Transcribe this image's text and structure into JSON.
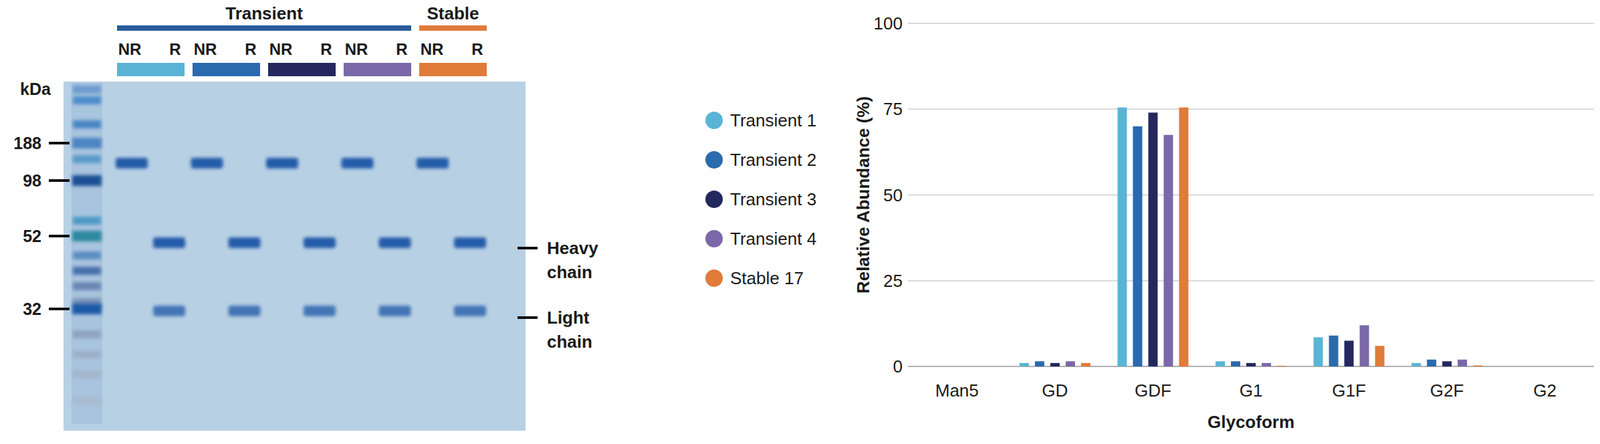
{
  "gel": {
    "ylabel": "kDa",
    "markers": [
      188,
      98,
      52,
      32
    ],
    "groups": [
      {
        "label": "Transient",
        "color": "#2a5b9b",
        "samples": [
          {
            "color": "#5ab4d6",
            "lanes": [
              "NR",
              "R"
            ]
          },
          {
            "color": "#2a6aad",
            "lanes": [
              "NR",
              "R"
            ]
          },
          {
            "color": "#24285e",
            "lanes": [
              "NR",
              "R"
            ]
          },
          {
            "color": "#7b68a8",
            "lanes": [
              "NR",
              "R"
            ]
          }
        ]
      },
      {
        "label": "Stable",
        "color": "#e07b3a",
        "samples": [
          {
            "color": "#e07b3a",
            "lanes": [
              "NR",
              "R"
            ]
          }
        ]
      }
    ],
    "bands": [
      {
        "label": "Heavy chain"
      },
      {
        "label": "Light chain"
      }
    ]
  },
  "chart_data": {
    "type": "bar",
    "xlabel": "Glycoform",
    "ylabel": "Relative Abundance (%)",
    "categories": [
      "Man5",
      "GD",
      "GDF",
      "G1",
      "G1F",
      "G2F",
      "G2"
    ],
    "series": [
      {
        "name": "Transient 1",
        "color": "#5ab4d6",
        "values": [
          0,
          1,
          75.5,
          1.5,
          8.5,
          1,
          0
        ]
      },
      {
        "name": "Transient 2",
        "color": "#2a6aad",
        "values": [
          0,
          1.5,
          70,
          1.5,
          9,
          2,
          0
        ]
      },
      {
        "name": "Transient 3",
        "color": "#24285e",
        "values": [
          0,
          1,
          74,
          1,
          7.5,
          1.5,
          0
        ]
      },
      {
        "name": "Transient 4",
        "color": "#7b68a8",
        "values": [
          0,
          1.5,
          67.5,
          1,
          12,
          2,
          0
        ]
      },
      {
        "name": "Stable 17",
        "color": "#e07b3a",
        "values": [
          0,
          1,
          75.5,
          0.2,
          6,
          0.3,
          0
        ]
      }
    ],
    "ylim": [
      0,
      100
    ],
    "yticks": [
      0,
      25,
      50,
      75,
      100
    ],
    "grid": true,
    "legend": "left"
  }
}
